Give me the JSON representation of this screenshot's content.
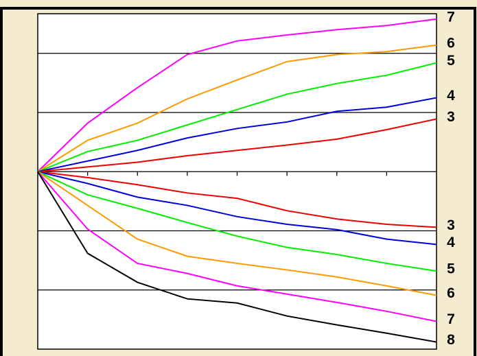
{
  "chart_data": {
    "type": "line",
    "x": [
      0,
      1,
      2,
      3,
      4,
      5,
      6,
      7,
      8
    ],
    "xlim": [
      0,
      8
    ],
    "xticks": [
      1,
      2,
      3,
      4,
      5,
      6,
      7
    ],
    "ylim": [
      -3,
      2.67
    ],
    "yticks": [
      -2,
      -1,
      0,
      1,
      2
    ],
    "grid": true,
    "series": [
      {
        "name": "7",
        "color": "#ff00ff",
        "values": [
          0,
          0.82,
          1.42,
          1.98,
          2.21,
          2.31,
          2.4,
          2.47,
          2.58
        ]
      },
      {
        "name": "6",
        "color": "#ff9900",
        "values": [
          0,
          0.53,
          0.82,
          1.23,
          1.55,
          1.86,
          1.98,
          2.03,
          2.14
        ]
      },
      {
        "name": "5",
        "color": "#00ee00",
        "values": [
          0,
          0.34,
          0.53,
          0.79,
          1.05,
          1.31,
          1.49,
          1.63,
          1.84
        ]
      },
      {
        "name": "4",
        "color": "#0000dd",
        "values": [
          0,
          0.18,
          0.36,
          0.57,
          0.73,
          0.84,
          1.02,
          1.09,
          1.25
        ]
      },
      {
        "name": "3",
        "color": "#ee0000",
        "values": [
          0,
          0.08,
          0.16,
          0.27,
          0.36,
          0.45,
          0.55,
          0.71,
          0.89
        ]
      },
      {
        "name": "3",
        "color": "#ee0000",
        "values": [
          0,
          -0.1,
          -0.22,
          -0.36,
          -0.45,
          -0.66,
          -0.8,
          -0.89,
          -0.94
        ]
      },
      {
        "name": "4",
        "color": "#0000dd",
        "values": [
          0,
          -0.2,
          -0.43,
          -0.57,
          -0.76,
          -0.89,
          -0.98,
          -1.14,
          -1.23
        ]
      },
      {
        "name": "5",
        "color": "#00ee00",
        "values": [
          0,
          -0.39,
          -0.62,
          -0.86,
          -1.09,
          -1.28,
          -1.4,
          -1.55,
          -1.68
        ]
      },
      {
        "name": "6",
        "color": "#ff9900",
        "values": [
          0,
          -0.57,
          -1.14,
          -1.43,
          -1.55,
          -1.66,
          -1.78,
          -1.93,
          -2.09
        ]
      },
      {
        "name": "7",
        "color": "#ff00ff",
        "values": [
          0,
          -0.97,
          -1.55,
          -1.72,
          -1.93,
          -2.07,
          -2.21,
          -2.36,
          -2.53
        ]
      },
      {
        "name": "8",
        "color": "#000000",
        "values": [
          0,
          -1.38,
          -1.87,
          -2.15,
          -2.22,
          -2.44,
          -2.59,
          -2.73,
          -2.88
        ]
      }
    ]
  }
}
